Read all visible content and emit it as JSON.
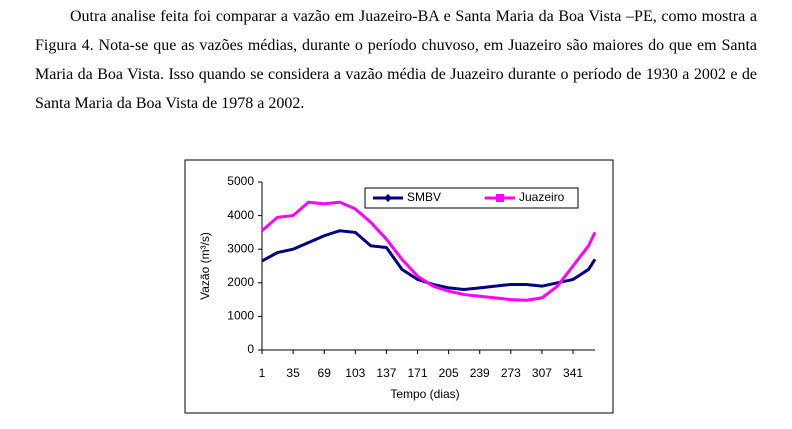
{
  "paragraph": "Outra analise feita foi comparar a vazão em Juazeiro-BA e Santa Maria da Boa Vista –PE, como mostra a Figura 4. Nota-se que as vazões médias, durante o período chuvoso, em Juazeiro são maiores do que em Santa Maria da Boa Vista. Isso quando se considera a vazão média de Juazeiro durante o período de 1930 a 2002 e de Santa Maria da Boa Vista de 1978 a 2002.",
  "chart_data": {
    "type": "line",
    "x_label": "Tempo (dias)",
    "y_label": "Vazão (m³/s)",
    "x": [
      1,
      18,
      35,
      52,
      69,
      86,
      103,
      120,
      137,
      154,
      171,
      188,
      205,
      222,
      239,
      256,
      273,
      290,
      307,
      324,
      341,
      358,
      365
    ],
    "series": [
      {
        "name": "SMBV",
        "color": "#000080",
        "values": [
          2650,
          2900,
          3000,
          3200,
          3400,
          3550,
          3500,
          3100,
          3050,
          2400,
          2100,
          1950,
          1850,
          1800,
          1850,
          1900,
          1950,
          1950,
          1900,
          2000,
          2100,
          2400,
          2700
        ]
      },
      {
        "name": "Juazeiro",
        "color": "#ff00ff",
        "values": [
          3550,
          3950,
          4000,
          4400,
          4350,
          4400,
          4200,
          3800,
          3300,
          2700,
          2200,
          1900,
          1750,
          1650,
          1600,
          1550,
          1500,
          1480,
          1550,
          1900,
          2500,
          3100,
          3500
        ]
      }
    ],
    "xlim": [
      1,
      365
    ],
    "xticks": [
      1,
      35,
      69,
      103,
      137,
      171,
      205,
      239,
      273,
      307,
      341
    ],
    "ylim": [
      0,
      5000
    ],
    "yticks": [
      0,
      1000,
      2000,
      3000,
      4000,
      5000
    ],
    "legend": "top-right"
  }
}
